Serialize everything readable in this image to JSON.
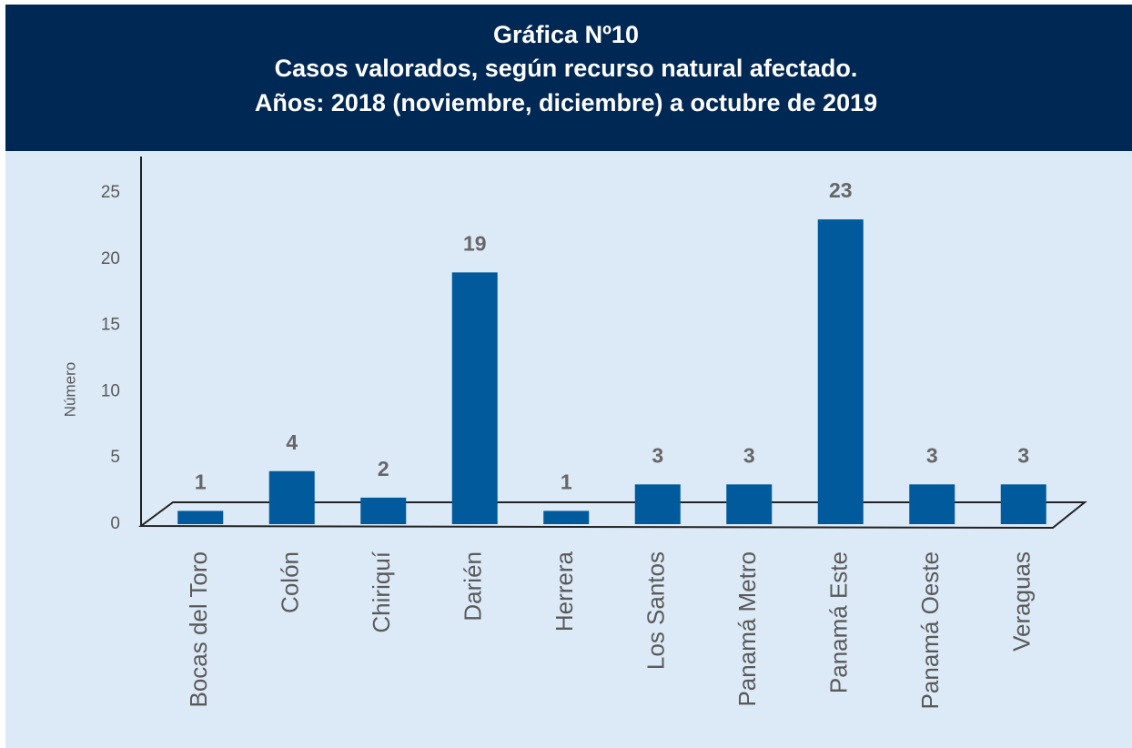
{
  "chart_data": {
    "type": "bar",
    "title": "Gráfica Nº10",
    "subtitle": [
      "Casos valorados, según recurso natural afectado.",
      "Años: 2018 (noviembre, diciembre) a octubre de 2019"
    ],
    "ylabel": "Número",
    "categories": [
      "Bocas del Toro",
      "Colón",
      "Chiriquí",
      "Darién",
      "Herrera",
      "Los Santos",
      "Panamá Metro",
      "Panamá Este",
      "Panamá Oeste",
      "Veraguas"
    ],
    "values": [
      1,
      4,
      2,
      19,
      1,
      3,
      3,
      23,
      3,
      3
    ],
    "color": "#005a9c",
    "ylim": [
      0,
      25
    ],
    "yticks": [
      0,
      5,
      10,
      15,
      20,
      25
    ],
    "grid": false
  }
}
